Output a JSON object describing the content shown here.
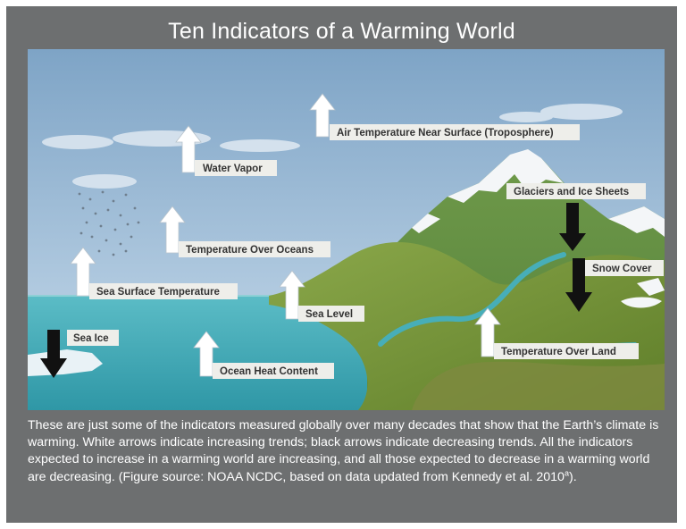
{
  "title": "Ten Indicators of a Warming World",
  "indicators": {
    "air_temp": "Air Temperature Near Surface (Troposphere)",
    "water_vapor": "Water Vapor",
    "glaciers": "Glaciers and Ice Sheets",
    "temp_oceans": "Temperature Over Oceans",
    "snow_cover": "Snow Cover",
    "sst": "Sea Surface Temperature",
    "sea_level": "Sea Level",
    "sea_ice": "Sea Ice",
    "temp_land": "Temperature Over Land",
    "ocean_heat": "Ocean Heat Content"
  },
  "caption": {
    "main": "These are just some of the indicators measured globally over many decades that show that the Earth’s climate is warming. White arrows indicate increasing trends; black arrows indicate decreasing trends. All the indicators expected to increase in a warming world are increasing, and all those expected to decrease in a warming world are decreasing. (Figure source: NOAA NCDC, based on data updated from Kennedy et al. 2010",
    "superscript": "a",
    "end": ")."
  },
  "colors": {
    "background": "#6d6f70",
    "sky": "#a7c3dd",
    "ocean": "#47aeb8",
    "land": "#7c9a3a",
    "arrow_up": "#ffffff",
    "arrow_down": "#111111",
    "label_box": "#eeeeea"
  }
}
